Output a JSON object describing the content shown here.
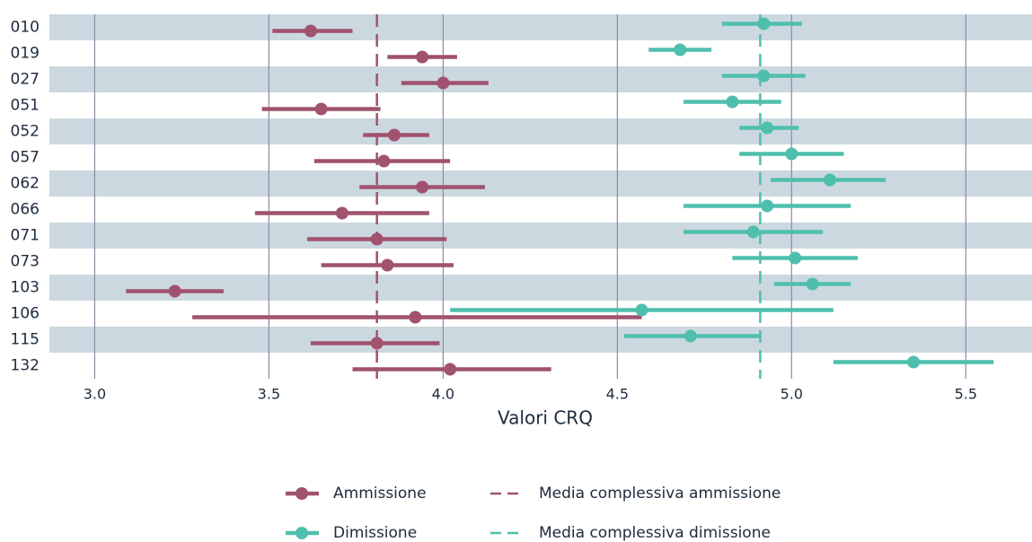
{
  "chart_data": {
    "type": "dot-interval",
    "x_label": "Valori CRQ",
    "categories": [
      "010",
      "019",
      "027",
      "051",
      "052",
      "057",
      "062",
      "066",
      "071",
      "073",
      "103",
      "106",
      "115",
      "132"
    ],
    "series": [
      {
        "name": "Ammissione",
        "color": "#a0526f",
        "values": [
          3.62,
          3.94,
          4.0,
          3.65,
          3.86,
          3.83,
          3.94,
          3.71,
          3.81,
          3.84,
          3.23,
          3.92,
          3.81,
          4.02
        ],
        "low": [
          3.51,
          3.84,
          3.88,
          3.48,
          3.77,
          3.63,
          3.76,
          3.46,
          3.61,
          3.65,
          3.09,
          3.28,
          3.62,
          3.74
        ],
        "high": [
          3.74,
          4.04,
          4.13,
          3.82,
          3.96,
          4.02,
          4.12,
          3.96,
          4.01,
          4.03,
          3.37,
          4.57,
          3.99,
          4.31
        ]
      },
      {
        "name": "Dimissione",
        "color": "#4fbfad",
        "values": [
          4.92,
          4.68,
          4.92,
          4.83,
          4.93,
          5.0,
          5.11,
          4.93,
          4.89,
          5.01,
          5.06,
          4.57,
          4.71,
          5.35
        ],
        "low": [
          4.8,
          4.59,
          4.8,
          4.69,
          4.85,
          4.85,
          4.94,
          4.69,
          4.69,
          4.83,
          4.95,
          4.02,
          4.52,
          5.12
        ],
        "high": [
          5.03,
          4.77,
          5.04,
          4.97,
          5.02,
          5.15,
          5.27,
          5.17,
          5.09,
          5.19,
          5.17,
          5.12,
          4.91,
          5.58
        ]
      }
    ],
    "reference_lines": [
      {
        "name": "Media complessiva ammissione",
        "value": 3.81,
        "color": "#a0526f"
      },
      {
        "name": "Media complessiva dimissione",
        "value": 4.91,
        "color": "#4fbfad"
      }
    ],
    "xlim": [
      2.87,
      5.69
    ],
    "xticks": [
      {
        "value": 3,
        "label": "3.0"
      },
      3.5,
      {
        "value": 4,
        "label": "4.0"
      },
      4.5,
      {
        "value": 5,
        "label": "5.0"
      },
      5.5
    ],
    "grid": true,
    "legend": "bottom"
  }
}
